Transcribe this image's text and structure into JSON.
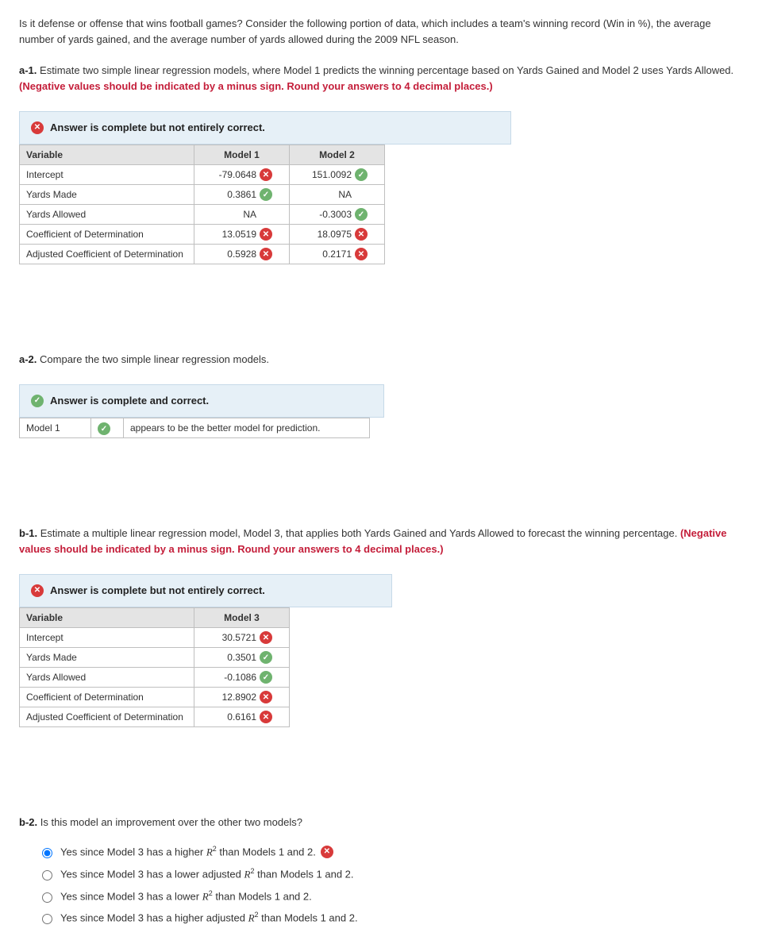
{
  "intro": "Is it defense or offense that wins football games? Consider the following portion of data, which includes a team's winning record (Win in %), the average number of yards gained, and the average number of yards allowed during the 2009 NFL season.",
  "a1": {
    "label": "a-1.",
    "text": " Estimate two simple linear regression models, where Model 1 predicts the winning percentage based on Yards Gained and Model 2 uses Yards Allowed. ",
    "red": "(Negative values should be indicated by a minus sign. Round your answers to 4 decimal places.)"
  },
  "banner_incorrect": "Answer is complete but not entirely correct.",
  "banner_correct": "Answer is complete and correct.",
  "table1": {
    "headers": [
      "Variable",
      "Model 1",
      "Model 2"
    ],
    "rows": [
      {
        "var": "Intercept",
        "m1": {
          "val": "-79.0648",
          "status": "x"
        },
        "m2": {
          "val": "151.0092",
          "status": "check"
        }
      },
      {
        "var": "Yards Made",
        "m1": {
          "val": "0.3861",
          "status": "check"
        },
        "m2": {
          "val": "NA",
          "status": null
        }
      },
      {
        "var": "Yards Allowed",
        "m1": {
          "val": "NA",
          "status": null
        },
        "m2": {
          "val": "-0.3003",
          "status": "check"
        }
      },
      {
        "var": "Coefficient of Determination",
        "m1": {
          "val": "13.0519",
          "status": "x"
        },
        "m2": {
          "val": "18.0975",
          "status": "x"
        }
      },
      {
        "var": "Adjusted Coefficient of Determination",
        "m1": {
          "val": "0.5928",
          "status": "x"
        },
        "m2": {
          "val": "0.2171",
          "status": "x"
        }
      }
    ]
  },
  "a2": {
    "label": "a-2.",
    "text": " Compare the two simple linear regression models.",
    "model_label": "Model 1",
    "desc": "appears to be the better model for prediction."
  },
  "b1": {
    "label": "b-1.",
    "text": " Estimate a multiple linear regression model, Model 3, that applies both Yards Gained and Yards Allowed to forecast the winning percentage. ",
    "red": "(Negative values should be indicated by a minus sign. Round your answers to 4 decimal places.)"
  },
  "table2": {
    "headers": [
      "Variable",
      "Model 3"
    ],
    "rows": [
      {
        "var": "Intercept",
        "m": {
          "val": "30.5721",
          "status": "x"
        }
      },
      {
        "var": "Yards Made",
        "m": {
          "val": "0.3501",
          "status": "check"
        }
      },
      {
        "var": "Yards Allowed",
        "m": {
          "val": "-0.1086",
          "status": "check"
        }
      },
      {
        "var": "Coefficient of Determination",
        "m": {
          "val": "12.8902",
          "status": "x"
        }
      },
      {
        "var": "Adjusted Coefficient of Determination",
        "m": {
          "val": "0.6161",
          "status": "x"
        }
      }
    ]
  },
  "b2": {
    "label": "b-2.",
    "text": " Is this model an improvement over the other two models?",
    "options": [
      {
        "pre": "Yes since Model 3 has a higher ",
        "post": " than Models 1 and 2.",
        "selected": true,
        "status": "x",
        "adjusted": false
      },
      {
        "pre": "Yes since Model 3 has a lower adjusted ",
        "post": " than Models 1 and 2.",
        "selected": false,
        "status": null,
        "adjusted": true
      },
      {
        "pre": "Yes since Model 3 has a lower ",
        "post": " than Models 1 and 2.",
        "selected": false,
        "status": null,
        "adjusted": false
      },
      {
        "pre": "Yes since Model 3 has a higher adjusted ",
        "post": " than Models 1 and 2.",
        "selected": false,
        "status": null,
        "adjusted": true
      }
    ]
  },
  "colors": {
    "red_text": "#c41e3a",
    "banner_bg": "#e6f0f7",
    "banner_border": "#c6d9e8",
    "th_bg": "#e4e4e4",
    "border": "#bfbfbf",
    "icon_x": "#d83a3a",
    "icon_check": "#6fb36f"
  }
}
